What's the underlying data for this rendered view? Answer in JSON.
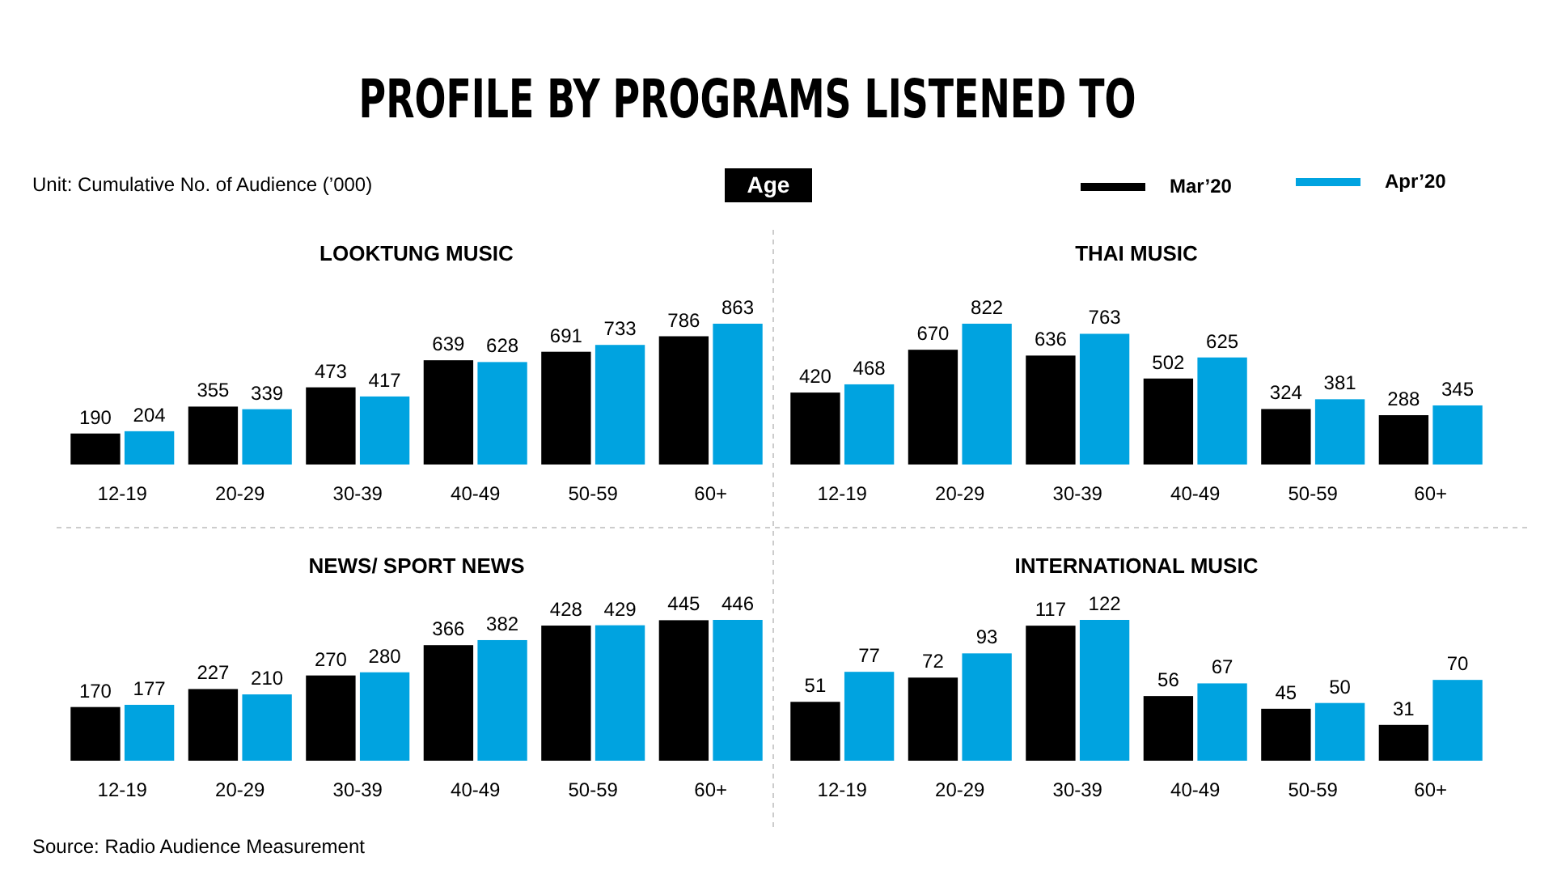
{
  "chart_data": [
    {
      "type": "other",
      "title": "PROFILE BY PROGRAMS LISTENED TO",
      "annotations": [
        "Unit: Cumulative  No. of Audience (’000)",
        "Age",
        "Source: Radio Audience Measurement"
      ]
    },
    {
      "type": "bar",
      "title": "LOOKTUNG MUSIC",
      "categories": [
        "12-19",
        "20-29",
        "30-39",
        "40-49",
        "50-59",
        "60+"
      ],
      "data_labels": true,
      "legend": "top right",
      "series": [
        {
          "name": "Mar’20",
          "color": "#000000",
          "values": [
            190,
            355,
            473,
            639,
            691,
            786
          ]
        },
        {
          "name": "Apr’20",
          "color": "#00a3e0",
          "values": [
            204,
            339,
            417,
            628,
            733,
            863
          ]
        }
      ]
    },
    {
      "type": "bar",
      "title": "THAI MUSIC",
      "categories": [
        "12-19",
        "20-29",
        "30-39",
        "40-49",
        "50-59",
        "60+"
      ],
      "data_labels": true,
      "series": [
        {
          "color": "#000000",
          "values": [
            420,
            670,
            636,
            502,
            324,
            288
          ]
        },
        {
          "color": "#00a3e0",
          "values": [
            468,
            822,
            763,
            625,
            381,
            345
          ]
        }
      ]
    },
    {
      "type": "bar",
      "title": "NEWS/ SPORT NEWS",
      "categories": [
        "12-19",
        "20-29",
        "30-39",
        "40-49",
        "50-59",
        "60+"
      ],
      "data_labels": true,
      "series": [
        {
          "color": "#000000",
          "values": [
            170,
            227,
            270,
            366,
            428,
            445
          ]
        },
        {
          "color": "#00a3e0",
          "values": [
            177,
            210,
            280,
            382,
            429,
            446
          ]
        }
      ]
    },
    {
      "type": "bar",
      "title": "INTERNATIONAL MUSIC",
      "categories": [
        "12-19",
        "20-29",
        "30-39",
        "40-49",
        "50-59",
        "60+"
      ],
      "data_labels": true,
      "series": [
        {
          "color": "#000000",
          "values": [
            51,
            72,
            117,
            56,
            45,
            31
          ]
        },
        {
          "color": "#00a3e0",
          "values": [
            77,
            93,
            122,
            67,
            50,
            70
          ]
        }
      ]
    }
  ]
}
